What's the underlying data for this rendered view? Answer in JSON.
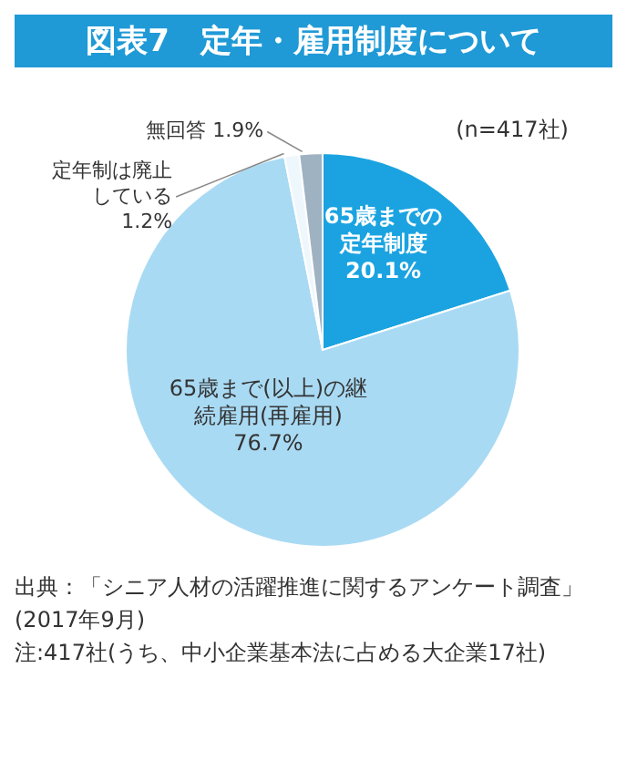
{
  "chart_data": {
    "type": "pie",
    "title": "図表7　定年・雇用制度について",
    "subtitle": "(n=417社)",
    "categories": [
      "65歳までの定年制度",
      "65歳まで(以上)の継続雇用(再雇用)",
      "定年制は廃止している",
      "無回答"
    ],
    "values": [
      20.1,
      76.7,
      1.2,
      1.9
    ],
    "value_labels": [
      "20.1%",
      "76.7%",
      "1.2%",
      "1.9%"
    ],
    "colors": [
      "#1aa3e0",
      "#a9daf3",
      "#eef7fc",
      "#9fb2c2"
    ],
    "annotations": [
      "出典：「シニア人材の活躍推進に関するアンケート調査」(2017年9月)",
      "注:417社(うち、中小企業基本法に占める大企業17社)"
    ]
  }
}
